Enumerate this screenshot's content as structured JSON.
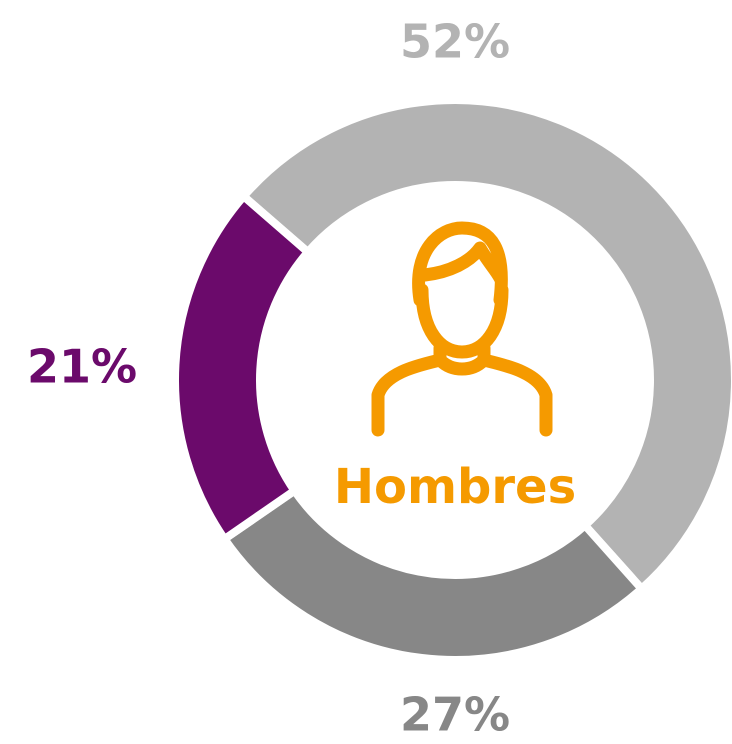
{
  "chart_data": {
    "type": "donut",
    "values": [
      52,
      27,
      21
    ],
    "value_labels": [
      "52%",
      "27%",
      "21%"
    ],
    "colors": [
      "#b3b3b3",
      "#878787",
      "#6b0a6b"
    ],
    "center_label": "Hombres",
    "center_color": "#f59a00"
  }
}
